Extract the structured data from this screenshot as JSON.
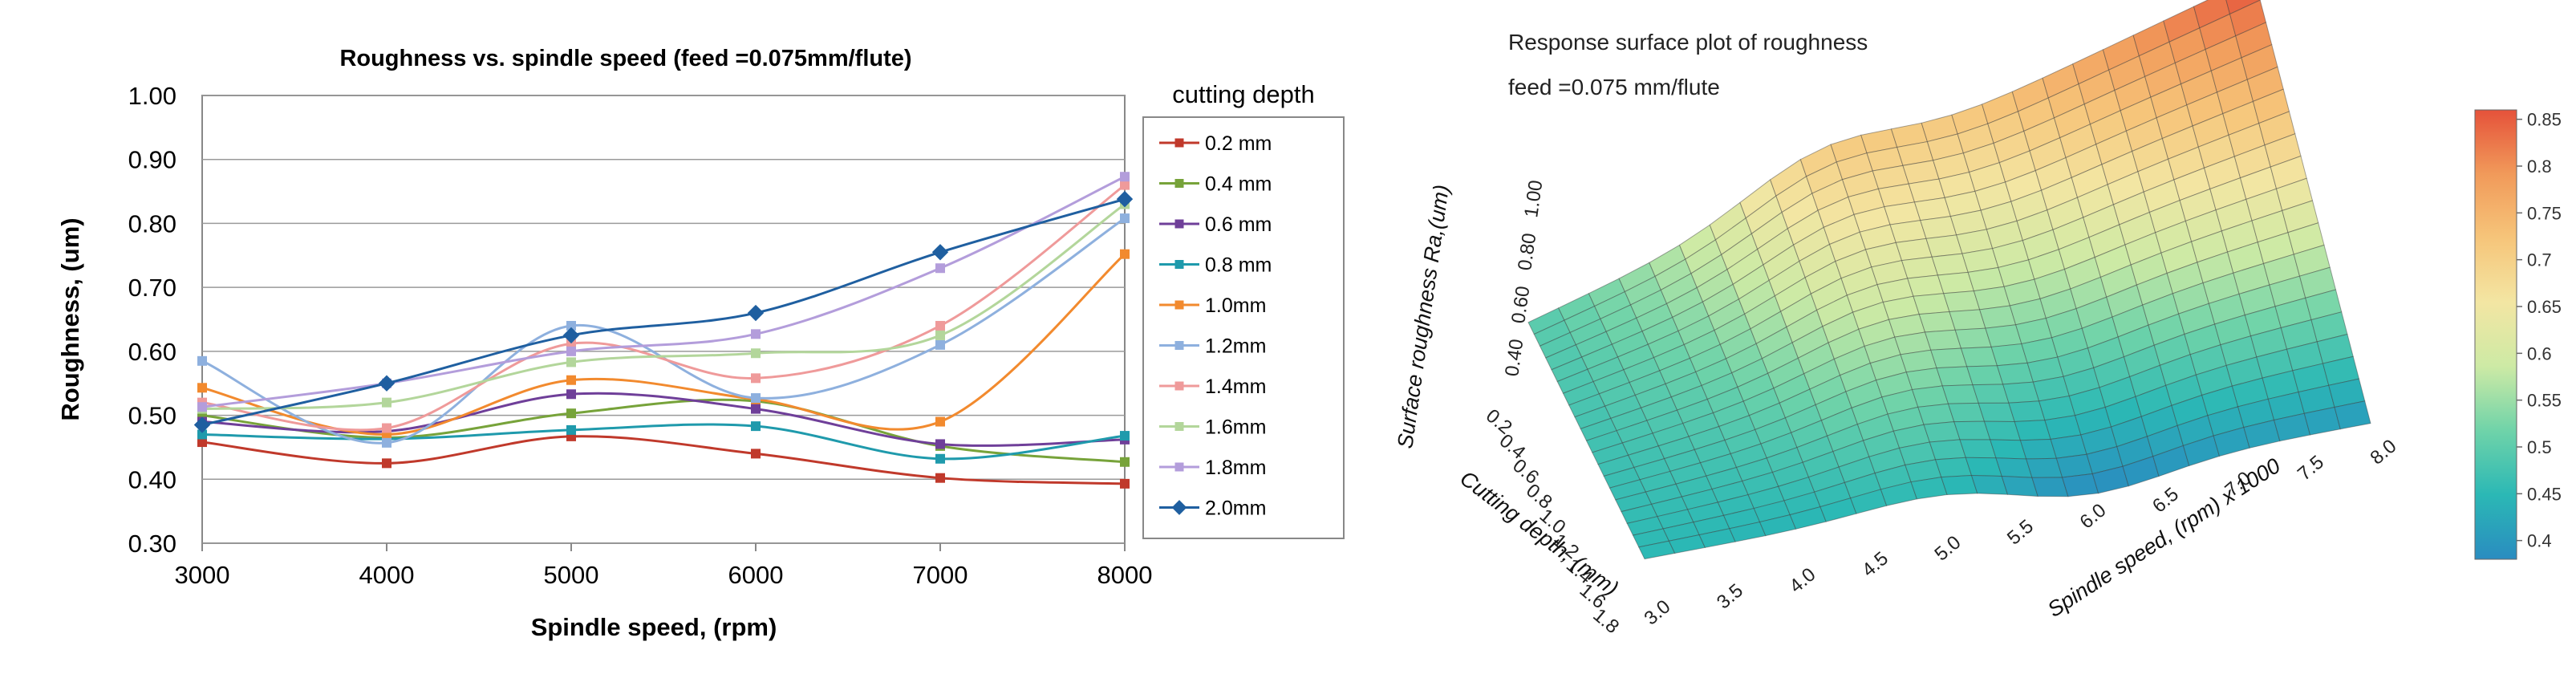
{
  "chart_data": [
    {
      "type": "line",
      "title": "Roughness vs. spindle speed  (feed =0.075mm/flute)",
      "xlabel": "Spindle speed, (rpm)",
      "ylabel": "Roughness, (um)",
      "x": [
        3000,
        4000,
        5000,
        6000,
        7000,
        8000
      ],
      "x_tick_labels": [
        "3000",
        "4000",
        "5000",
        "6000",
        "7000",
        "8000"
      ],
      "xlim": [
        3000,
        8000
      ],
      "ylim": [
        0.3,
        1.0
      ],
      "y_ticks": [
        0.3,
        0.4,
        0.5,
        0.6,
        0.7,
        0.8,
        0.9,
        1.0
      ],
      "y_tick_labels": [
        "0.30",
        "0.40",
        "0.50",
        "0.60",
        "0.70",
        "0.80",
        "0.90",
        "1.00"
      ],
      "grid": "horizontal",
      "legend_title": "cutting depth",
      "legend_position": "right",
      "series": [
        {
          "name": "0.2 mm",
          "color": "#c0392b",
          "marker": "square",
          "values": [
            0.458,
            0.425,
            0.467,
            0.44,
            0.402,
            0.393
          ]
        },
        {
          "name": "0.4 mm",
          "color": "#77a33a",
          "marker": "square",
          "values": [
            0.5,
            0.465,
            0.503,
            0.522,
            0.452,
            0.427
          ]
        },
        {
          "name": "0.6 mm",
          "color": "#6f3f99",
          "marker": "square",
          "values": [
            0.49,
            0.475,
            0.533,
            0.51,
            0.455,
            0.462
          ]
        },
        {
          "name": "0.8 mm",
          "color": "#1f9aac",
          "marker": "square",
          "values": [
            0.47,
            0.463,
            0.477,
            0.483,
            0.432,
            0.468
          ]
        },
        {
          "name": "1.0mm",
          "color": "#f28a2e",
          "marker": "square",
          "values": [
            0.543,
            0.47,
            0.555,
            0.525,
            0.49,
            0.752
          ]
        },
        {
          "name": "1.2mm",
          "color": "#8eb0de",
          "marker": "square",
          "values": [
            0.585,
            0.457,
            0.64,
            0.527,
            0.61,
            0.808
          ]
        },
        {
          "name": "1.4mm",
          "color": "#ef9a9a",
          "marker": "square",
          "values": [
            0.52,
            0.48,
            0.612,
            0.558,
            0.64,
            0.86
          ]
        },
        {
          "name": "1.6mm",
          "color": "#b3d69b",
          "marker": "square",
          "values": [
            0.51,
            0.52,
            0.583,
            0.597,
            0.625,
            0.83
          ]
        },
        {
          "name": "1.8mm",
          "color": "#b39ddb",
          "marker": "square",
          "values": [
            0.513,
            0.55,
            0.6,
            0.627,
            0.73,
            0.873
          ]
        },
        {
          "name": "2.0mm",
          "color": "#1f5fa0",
          "marker": "diamond",
          "values": [
            0.485,
            0.55,
            0.625,
            0.66,
            0.755,
            0.838
          ]
        }
      ]
    },
    {
      "type": "surface",
      "title": "Response  surface plot of roughness",
      "subtitle": "feed =0.075 mm/flute",
      "xlabel": "Spindle speed, (rpm) x 1000",
      "ylabel": "Cutting depth, (mm)",
      "zlabel": "Surface roughness Ra,(um)",
      "x_ticks": [
        "3.0",
        "3.5",
        "4.0",
        "4.5",
        "5.0",
        "5.5",
        "6.0",
        "6.5",
        "7.0",
        "7.5",
        "8.0"
      ],
      "y_ticks": [
        "0.2",
        "0.4",
        "0.6",
        "0.8",
        "1.0",
        "1.2",
        "1.4",
        "1.6",
        "1.8"
      ],
      "z_ticks": [
        "0.40",
        "0.60",
        "0.80",
        "1.00"
      ],
      "xlim": [
        3.0,
        8.0
      ],
      "ylim": [
        0.2,
        2.0
      ],
      "zlim": [
        0.4,
        1.0
      ],
      "corner_values": {
        "speed_3_depth_0.2": 0.45,
        "speed_8_depth_0.2": 0.4,
        "speed_3_depth_2.0": 0.49,
        "speed_8_depth_2.0": 0.86
      },
      "colorbar": {
        "ticks": [
          "0.85",
          "0.8",
          "0.75",
          "0.7",
          "0.65",
          "0.6",
          "0.55",
          "0.5",
          "0.45",
          "0.4"
        ],
        "range": [
          0.38,
          0.86
        ],
        "colors": [
          "#2a8cc0",
          "#2bb8b5",
          "#6fd3a9",
          "#cdeaa5",
          "#f3e6a3",
          "#f6c57a",
          "#f19a5a",
          "#e5523a"
        ]
      }
    }
  ]
}
